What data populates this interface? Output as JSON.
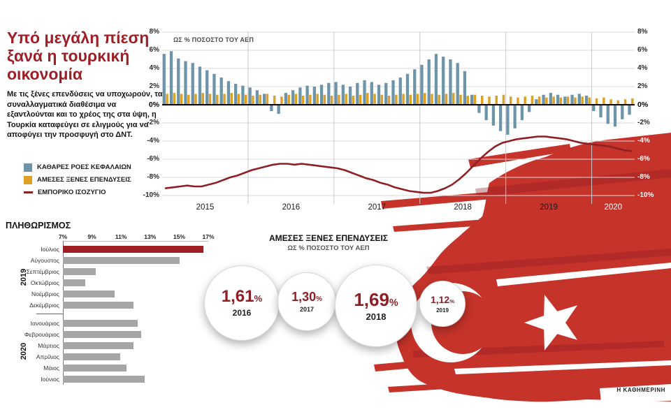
{
  "header": {
    "title": "Υπό μεγάλη πίεση ξανά η τουρκική οικονομία",
    "intro": "Με τις ξένες επενδύσεις να υποχωρούν, τα συναλλαγματικά διαθέσιμα να εξαντλούνται και το χρέος της στα ύψη, η Τουρκία καταφεύγει σε ελιγμούς για να αποφύγει την προσφυγή στο ΔΝΤ."
  },
  "legend": {
    "items": [
      {
        "label": "ΚΑΘΑΡΕΣ ΡΟΕΣ ΚΕΦΑΛΑΙΩΝ",
        "swatch": "square",
        "color": "#6d94a9"
      },
      {
        "label": "ΑΜΕΣΕΣ ΞΕΝΕΣ ΕΠΕΝΔΥΣΕΙΣ",
        "swatch": "square",
        "color": "#dca125"
      },
      {
        "label": "ΕΜΠΟΡΙΚΟ ΙΣΟΖΥΓΙΟ",
        "swatch": "line",
        "color": "#8e2025"
      }
    ]
  },
  "colors": {
    "accent_red": "#9e1f26",
    "bar_blue": "#6d94a9",
    "bar_orange": "#dca125",
    "bar_gray": "#a6a6a6",
    "line_dark_red": "#8e2025",
    "flag_red": "#c5332b"
  },
  "chart_data": [
    {
      "type": "bar",
      "name": "capital-flows-fdi-trade-balance",
      "title": "ΩΣ % ΠΟΣΟΣΤΟ ΤΟΥ ΑΕΠ",
      "x_note": "monthly, 2015-01 to 2020-06",
      "x_years": [
        {
          "label": "2015",
          "light": false
        },
        {
          "label": "2016",
          "light": false
        },
        {
          "label": "2017",
          "light": false
        },
        {
          "label": "2018",
          "light": false
        },
        {
          "label": "2019",
          "light": false
        },
        {
          "label": "2020",
          "light": true
        }
      ],
      "months_per_year": [
        12,
        12,
        12,
        12,
        12,
        6
      ],
      "ylim": [
        -10,
        8
      ],
      "ytick_step": 2,
      "series": [
        {
          "name": "ΚΑΘΑΡΕΣ ΡΟΕΣ ΚΕΦΑΛΑΙΩΝ",
          "type": "bar",
          "color": "#6d94a9",
          "values": [
            5.6,
            5.9,
            5.1,
            4.8,
            4.6,
            4.2,
            3.8,
            3.4,
            3.0,
            2.6,
            2.3,
            2.1,
            1.9,
            1.6,
            1.2,
            -0.7,
            -1.0,
            1.3,
            1.6,
            1.9,
            2.1,
            2.0,
            2.2,
            2.4,
            2.5,
            2.2,
            2.0,
            2.4,
            2.7,
            2.5,
            2.2,
            2.4,
            2.7,
            3.0,
            3.4,
            3.9,
            4.4,
            5.0,
            5.6,
            5.3,
            5.0,
            4.6,
            3.7,
            1.1,
            -0.9,
            -1.7,
            -2.3,
            -2.9,
            -3.3,
            -2.6,
            -1.7,
            -0.8,
            0.6,
            1.1,
            1.3,
            1.1,
            0.9,
            1.1,
            1.2,
            1.0,
            -0.7,
            -1.4,
            -2.1,
            -2.4,
            -1.6,
            -1.1
          ]
        },
        {
          "name": "ΑΜΕΣΕΣ ΞΕΝΕΣ ΕΠΕΝΔΥΣΕΙΣ",
          "type": "bar",
          "color": "#dca125",
          "values": [
            1.2,
            1.3,
            1.2,
            1.1,
            1.2,
            1.3,
            1.2,
            1.1,
            1.2,
            1.3,
            1.2,
            1.1,
            1.0,
            1.1,
            1.2,
            1.0,
            0.9,
            1.1,
            1.2,
            1.0,
            1.1,
            1.2,
            1.1,
            1.0,
            1.1,
            1.2,
            1.0,
            1.1,
            1.3,
            1.2,
            1.1,
            1.0,
            1.1,
            1.2,
            1.1,
            1.2,
            1.3,
            1.2,
            1.1,
            1.2,
            1.3,
            1.1,
            1.0,
            1.1,
            1.0,
            0.9,
            1.0,
            1.1,
            0.9,
            0.8,
            0.9,
            1.0,
            0.9,
            0.8,
            0.9,
            0.8,
            0.9,
            0.8,
            0.9,
            0.8,
            0.7,
            0.8,
            0.6,
            0.5,
            0.6,
            0.7
          ]
        },
        {
          "name": "ΕΜΠΟΡΙΚΟ ΙΣΟΖΥΓΙΟ",
          "type": "line",
          "color": "#8e2025",
          "values": [
            -9.2,
            -9.1,
            -9.0,
            -8.9,
            -9.0,
            -9.0,
            -8.8,
            -8.6,
            -8.3,
            -8.0,
            -7.8,
            -7.5,
            -7.2,
            -7.0,
            -6.8,
            -6.6,
            -6.5,
            -6.5,
            -6.6,
            -6.5,
            -6.6,
            -6.7,
            -6.8,
            -6.9,
            -7.0,
            -7.2,
            -7.5,
            -7.8,
            -8.1,
            -8.3,
            -8.6,
            -8.8,
            -9.1,
            -9.3,
            -9.5,
            -9.6,
            -9.7,
            -9.7,
            -9.5,
            -9.2,
            -8.8,
            -8.2,
            -7.5,
            -6.7,
            -5.9,
            -5.2,
            -4.6,
            -4.2,
            -4.0,
            -3.8,
            -3.7,
            -3.6,
            -3.5,
            -3.5,
            -3.6,
            -3.7,
            -3.8,
            -4.0,
            -4.2,
            -4.3,
            -4.4,
            -4.5,
            -4.6,
            -4.8,
            -5.0,
            -5.1
          ]
        }
      ]
    },
    {
      "type": "bar",
      "name": "inflation",
      "title": "ΠΛΗΘΩΡΙΣΜΟΣ",
      "orientation": "horizontal",
      "xlim": [
        7,
        17
      ],
      "xtick_labels": [
        "7%",
        "9%",
        "11%",
        "13%",
        "15%",
        "17%"
      ],
      "bar_color": "#a6a6a6",
      "highlight_color": "#9e2024",
      "groups": [
        {
          "year": "2019",
          "rows": [
            {
              "label": "Ιούλιος",
              "value": 16.65,
              "highlight": true
            },
            {
              "label": "Αύγουστος",
              "value": 15.01
            },
            {
              "label": "Σεπτέμβριος",
              "value": 9.26
            },
            {
              "label": "Οκτώβριος",
              "value": 8.55
            },
            {
              "label": "Νοέμβριος",
              "value": 10.56
            },
            {
              "label": "Δεκέμβριος",
              "value": 11.84
            }
          ]
        },
        {
          "year": "2020",
          "rows": [
            {
              "label": "Ιανουάριος",
              "value": 12.15
            },
            {
              "label": "Φεβρουάριος",
              "value": 12.37
            },
            {
              "label": "Μάρτιος",
              "value": 11.86
            },
            {
              "label": "Απρίλιος",
              "value": 10.94
            },
            {
              "label": "Μάιος",
              "value": 11.39
            },
            {
              "label": "Ιούνιος",
              "value": 12.62
            }
          ]
        }
      ]
    },
    {
      "type": "bubbles",
      "name": "fdi-by-year",
      "title": "ΑΜΕΣΕΣ ΞΕΝΕΣ ΕΠΕΝΔΥΣΕΙΣ",
      "subtitle": "ΩΣ % ΠΟΣΟΣΤΟ ΤΟΥ ΑΕΠ",
      "unit": "%",
      "items": [
        {
          "year": "2016",
          "value": 1.61,
          "display": "1,61",
          "diameter": 106
        },
        {
          "year": "2017",
          "value": 1.3,
          "display": "1,30",
          "diameter": 82
        },
        {
          "year": "2018",
          "value": 1.69,
          "display": "1,69",
          "diameter": 116
        },
        {
          "year": "2019",
          "value": 1.12,
          "display": "1,12",
          "diameter": 64
        }
      ]
    }
  ],
  "source": "Η ΚΑΘΗΜΕΡΙΝΗ"
}
